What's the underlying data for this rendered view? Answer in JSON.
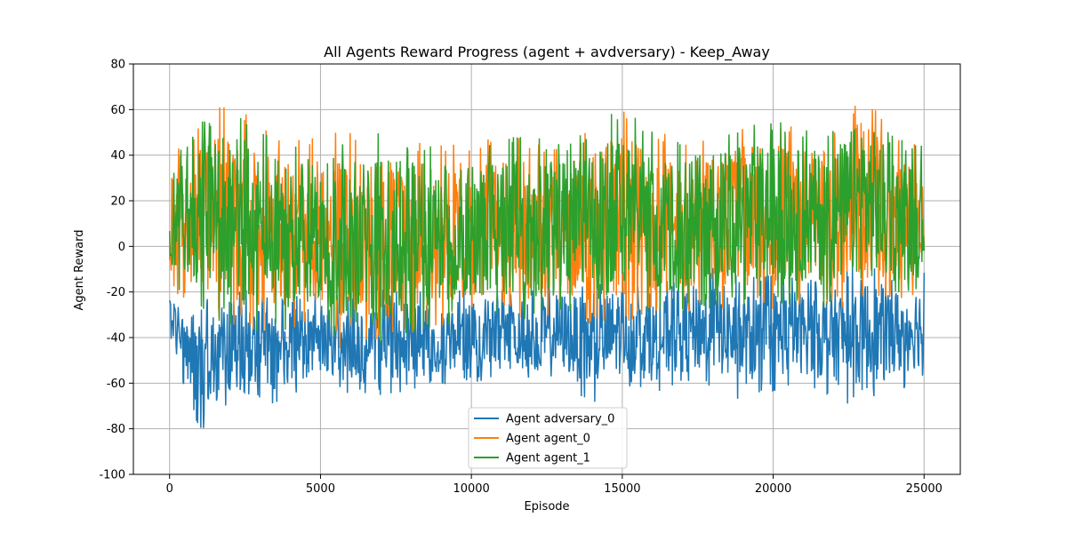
{
  "chart_data": {
    "type": "line",
    "title": "All Agents Reward Progress (agent + avdversary) - Keep_Away",
    "xlabel": "Episode",
    "ylabel": "Agent Reward",
    "xlim": [
      -1200,
      26200
    ],
    "ylim": [
      -100,
      80
    ],
    "xticks": [
      0,
      5000,
      10000,
      15000,
      20000,
      25000
    ],
    "yticks": [
      -100,
      -80,
      -60,
      -40,
      -20,
      0,
      20,
      40,
      60,
      80
    ],
    "grid": true,
    "legend_position": "bottom-center",
    "episodes": 25000,
    "series": [
      {
        "name": "Agent adversary_0",
        "color": "#1f77b4",
        "x": [
          0,
          1000,
          2000,
          3000,
          4000,
          5000,
          6000,
          7000,
          8000,
          9000,
          10000,
          11000,
          12000,
          13000,
          14000,
          15000,
          16000,
          17000,
          18000,
          19000,
          20000,
          21000,
          22000,
          23000,
          24000,
          25000
        ],
        "min": [
          -43,
          -82,
          -70,
          -73,
          -66,
          -60,
          -66,
          -66,
          -63,
          -62,
          -60,
          -60,
          -60,
          -60,
          -71,
          -62,
          -65,
          -62,
          -62,
          -68,
          -64,
          -62,
          -67,
          -73,
          -65,
          -58
        ],
        "max": [
          -18,
          -25,
          -17,
          -20,
          -22,
          -20,
          -22,
          -19,
          -18,
          -20,
          -17,
          -18,
          -18,
          -14,
          -17,
          -10,
          -18,
          -12,
          -8,
          -14,
          -12,
          -13,
          -12,
          -5,
          -12,
          -10
        ]
      },
      {
        "name": "Agent agent_0",
        "color": "#ff7f0e",
        "x": [
          0,
          1000,
          2000,
          3000,
          4000,
          5000,
          6000,
          7000,
          8000,
          9000,
          10000,
          11000,
          12000,
          13000,
          14000,
          15000,
          16000,
          17000,
          18000,
          19000,
          20000,
          21000,
          22000,
          23000,
          24000,
          25000
        ],
        "min": [
          -20,
          -28,
          -36,
          -40,
          -38,
          -35,
          -50,
          -45,
          -38,
          -35,
          -32,
          -30,
          -35,
          -30,
          -35,
          -35,
          -30,
          -30,
          -28,
          -28,
          -28,
          -26,
          -28,
          -26,
          -25,
          -22
        ],
        "max": [
          38,
          55,
          65,
          52,
          48,
          50,
          52,
          50,
          48,
          46,
          47,
          48,
          48,
          46,
          52,
          62,
          52,
          48,
          52,
          55,
          56,
          52,
          53,
          69,
          48,
          44
        ]
      },
      {
        "name": "Agent agent_1",
        "color": "#2ca02c",
        "x": [
          0,
          1000,
          2000,
          3000,
          4000,
          5000,
          6000,
          7000,
          8000,
          9000,
          10000,
          11000,
          12000,
          13000,
          14000,
          15000,
          16000,
          17000,
          18000,
          19000,
          20000,
          21000,
          22000,
          23000,
          24000,
          25000
        ],
        "min": [
          -20,
          -28,
          -36,
          -40,
          -38,
          -35,
          -50,
          -45,
          -38,
          -35,
          -32,
          -30,
          -35,
          -30,
          -35,
          -35,
          -30,
          -30,
          -28,
          -28,
          -28,
          -26,
          -28,
          -26,
          -25,
          -22
        ],
        "max": [
          38,
          55,
          65,
          52,
          48,
          50,
          52,
          50,
          48,
          46,
          47,
          48,
          48,
          46,
          52,
          62,
          52,
          48,
          52,
          55,
          56,
          52,
          53,
          69,
          48,
          44
        ]
      }
    ]
  }
}
